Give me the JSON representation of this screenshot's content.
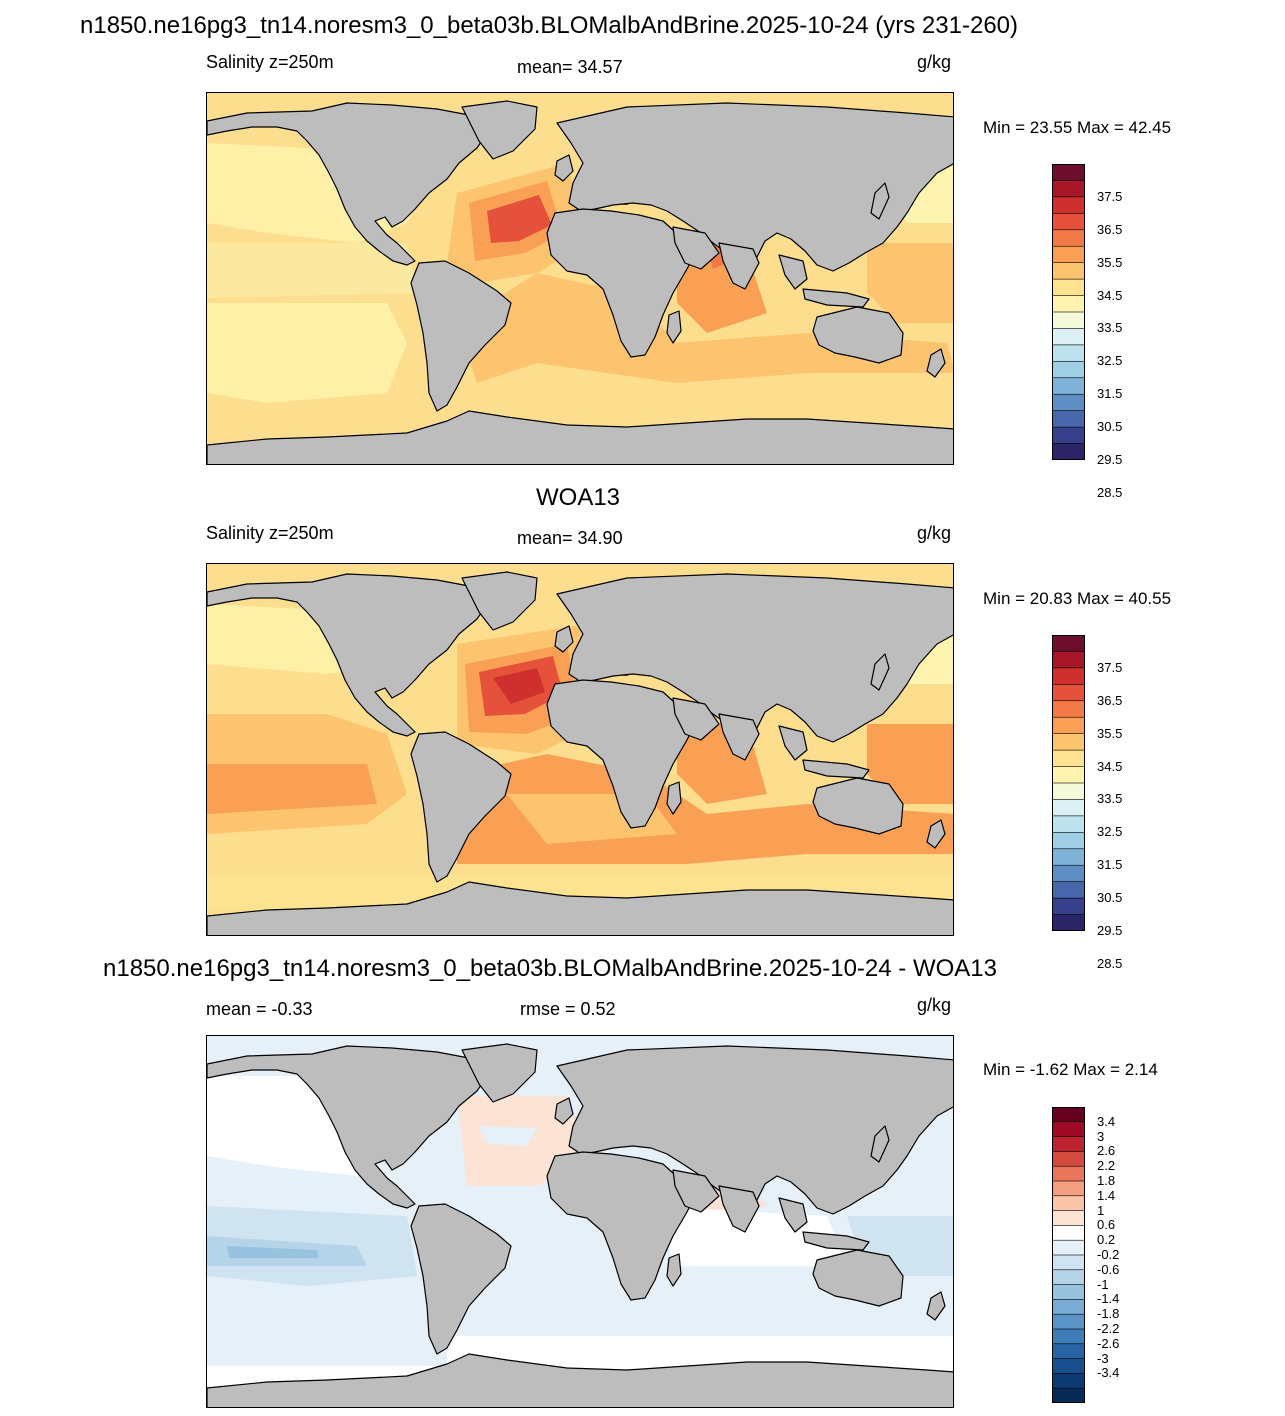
{
  "panels": [
    {
      "title": "n1850.ne16pg3_tn14.noresm3_0_beta03b.BLOMalbAndBrine.2025-10-24 (yrs 231-260)",
      "left_label": "Salinity z=250m",
      "center_label": "mean=  34.57",
      "units": "g/kg",
      "minmax": "Min =  23.55 Max =  42.45",
      "colorbar": {
        "colors": [
          "#6b0d2b",
          "#a8162a",
          "#cf2f2d",
          "#e5513b",
          "#f27a46",
          "#f9a055",
          "#fcc46e",
          "#fde28f",
          "#fff3b0",
          "#f4f9d9",
          "#ddf0f5",
          "#bfe3ee",
          "#9fcfe4",
          "#7fb3d7",
          "#5e8ec3",
          "#4866aa",
          "#373f8a",
          "#2b2568"
        ],
        "labels": [
          "37.5",
          "36.5",
          "35.5",
          "34.5",
          "33.5",
          "32.5",
          "31.5",
          "30.5",
          "29.5",
          "28.5"
        ]
      },
      "map_variant": "model"
    },
    {
      "title": "WOA13",
      "left_label": "Salinity z=250m",
      "center_label": "mean=  34.90",
      "units": "g/kg",
      "minmax": "Min =  20.83 Max =  40.55",
      "colorbar": {
        "colors": [
          "#6b0d2b",
          "#a8162a",
          "#cf2f2d",
          "#e5513b",
          "#f27a46",
          "#f9a055",
          "#fcc46e",
          "#fde28f",
          "#fff3b0",
          "#f4f9d9",
          "#ddf0f5",
          "#bfe3ee",
          "#9fcfe4",
          "#7fb3d7",
          "#5e8ec3",
          "#4866aa",
          "#373f8a",
          "#2b2568"
        ],
        "labels": [
          "37.5",
          "36.5",
          "35.5",
          "34.5",
          "33.5",
          "32.5",
          "31.5",
          "30.5",
          "29.5",
          "28.5"
        ]
      },
      "map_variant": "obs"
    },
    {
      "title": "n1850.ne16pg3_tn14.noresm3_0_beta03b.BLOMalbAndBrine.2025-10-24 - WOA13",
      "left_label": "mean =  -0.33",
      "center_label": "rmse =   0.52",
      "units": "g/kg",
      "minmax": "Min =  -1.62 Max =   2.14",
      "colorbar": {
        "colors": [
          "#67001f",
          "#9c0a25",
          "#bd2230",
          "#d44a3e",
          "#e7765a",
          "#f29e7f",
          "#f9c4a8",
          "#fde3d4",
          "#ffffff",
          "#e6f0f8",
          "#cfe3f0",
          "#b5d4e8",
          "#98c3df",
          "#79acd4",
          "#5b95c7",
          "#3d7cb8",
          "#2764a6",
          "#174e8d",
          "#0c3a73",
          "#082a57"
        ],
        "labels": [
          "3.4",
          "3",
          "2.6",
          "2.2",
          "1.8",
          "1.4",
          "1",
          "0.6",
          "0.2",
          "-0.2",
          "-0.6",
          "-1",
          "-1.4",
          "-1.8",
          "-2.2",
          "-2.6",
          "-3",
          "-3.4"
        ]
      },
      "map_variant": "diff"
    }
  ],
  "colors": {
    "land": "#bdbdbd",
    "coast": "#000000"
  }
}
